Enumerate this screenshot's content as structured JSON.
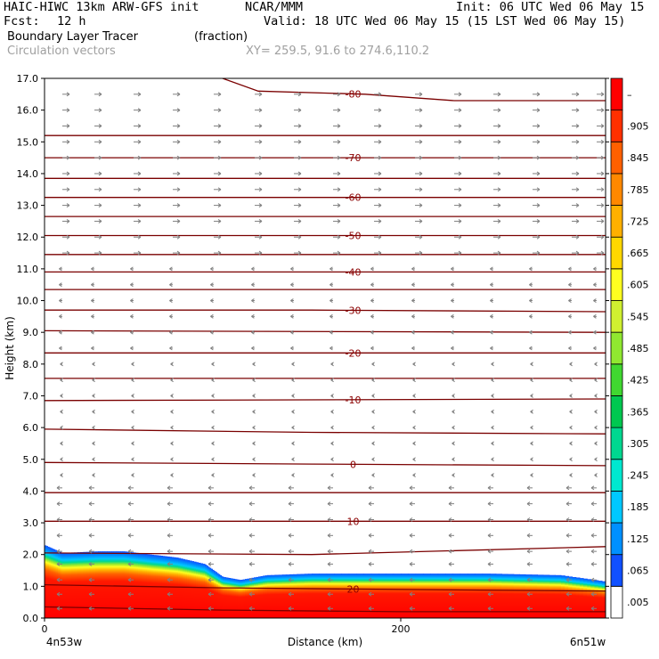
{
  "header": {
    "model": "HAIC-HIWC 13km ARW-GFS init",
    "org": "NCAR/MMM",
    "init": "Init: 06 UTC Wed 06 May 15",
    "fcst_label": "Fcst:",
    "fcst_value": "12 h",
    "valid": "Valid: 18 UTC Wed 06 May 15 (15 LST Wed 06 May 15)",
    "field": "Boundary Layer Tracer",
    "units": "(fraction)",
    "overlay": "Circulation vectors",
    "xy": "XY= 259.5, 91.6 to 274.6,110.2"
  },
  "chart_data": {
    "type": "heatmap",
    "title": "Boundary Layer Tracer",
    "units": "(fraction)",
    "xlabel": "Distance (km)",
    "ylabel": "Height (km)",
    "x_ticks": [
      "0",
      "200"
    ],
    "x_end_labels": {
      "left": "4n53w",
      "right": "6n51w"
    },
    "xlim": [
      0,
      315
    ],
    "ylim": [
      0,
      17
    ],
    "y_ticks": [
      "0.0",
      "1.0",
      "2.0",
      "3.0",
      "4.0",
      "5.0",
      "6.0",
      "7.0",
      "8.0",
      "9.0",
      "10.0",
      "11.0",
      "12.0",
      "13.0",
      "14.0",
      "15.0",
      "16.0",
      "17.0"
    ],
    "colorbar": {
      "labels": [
        ".005",
        ".065",
        ".125",
        ".185",
        ".245",
        ".305",
        ".365",
        ".425",
        ".485",
        ".545",
        ".605",
        ".665",
        ".725",
        ".785",
        ".845",
        ".905",
        "–"
      ],
      "colors": [
        "#ffffff",
        "#1050ff",
        "#0090ff",
        "#00c8ff",
        "#00e8d0",
        "#00d890",
        "#00c850",
        "#40d830",
        "#90e830",
        "#d0f030",
        "#ffff20",
        "#ffd800",
        "#ffb000",
        "#ff8800",
        "#ff6000",
        "#ff3000",
        "#ff0000"
      ]
    },
    "tracer_top_km": [
      [
        0,
        2.3
      ],
      [
        10,
        2.05
      ],
      [
        30,
        2.1
      ],
      [
        45,
        2.1
      ],
      [
        60,
        2.0
      ],
      [
        75,
        1.9
      ],
      [
        90,
        1.7
      ],
      [
        100,
        1.3
      ],
      [
        110,
        1.2
      ],
      [
        125,
        1.35
      ],
      [
        150,
        1.4
      ],
      [
        200,
        1.4
      ],
      [
        250,
        1.4
      ],
      [
        290,
        1.35
      ],
      [
        315,
        1.15
      ]
    ],
    "contours": [
      {
        "label": "-80",
        "x": [
          100,
          120,
          180,
          230,
          315
        ],
        "y": [
          17.0,
          16.6,
          16.5,
          16.3,
          16.3
        ]
      },
      {
        "label": "",
        "x": [
          0,
          315
        ],
        "y": [
          15.2,
          15.2
        ]
      },
      {
        "label": "-70",
        "x": [
          0,
          315
        ],
        "y": [
          14.5,
          14.5
        ]
      },
      {
        "label": "",
        "x": [
          0,
          315
        ],
        "y": [
          13.85,
          13.85
        ]
      },
      {
        "label": "-60",
        "x": [
          0,
          315
        ],
        "y": [
          13.25,
          13.25
        ]
      },
      {
        "label": "",
        "x": [
          0,
          315
        ],
        "y": [
          12.65,
          12.65
        ]
      },
      {
        "label": "-50",
        "x": [
          0,
          315
        ],
        "y": [
          12.05,
          12.05
        ]
      },
      {
        "label": "",
        "x": [
          0,
          315
        ],
        "y": [
          11.45,
          11.45
        ]
      },
      {
        "label": "-40",
        "x": [
          0,
          315
        ],
        "y": [
          10.9,
          10.9
        ]
      },
      {
        "label": "",
        "x": [
          0,
          315
        ],
        "y": [
          10.35,
          10.35
        ]
      },
      {
        "label": "-30",
        "x": [
          0,
          150,
          315
        ],
        "y": [
          9.7,
          9.7,
          9.65
        ]
      },
      {
        "label": "",
        "x": [
          0,
          315
        ],
        "y": [
          9.05,
          9.0
        ]
      },
      {
        "label": "-20",
        "x": [
          0,
          315
        ],
        "y": [
          8.35,
          8.35
        ]
      },
      {
        "label": "",
        "x": [
          0,
          315
        ],
        "y": [
          7.55,
          7.55
        ]
      },
      {
        "label": "-10",
        "x": [
          0,
          315
        ],
        "y": [
          6.85,
          6.9
        ]
      },
      {
        "label": "",
        "x": [
          0,
          150,
          315
        ],
        "y": [
          5.95,
          5.85,
          5.8
        ]
      },
      {
        "label": "0",
        "x": [
          0,
          150,
          315
        ],
        "y": [
          4.9,
          4.85,
          4.8
        ]
      },
      {
        "label": "",
        "x": [
          0,
          315
        ],
        "y": [
          3.95,
          3.95
        ]
      },
      {
        "label": "10",
        "x": [
          0,
          315
        ],
        "y": [
          3.05,
          3.05
        ]
      },
      {
        "label": "",
        "x": [
          0,
          150,
          315
        ],
        "y": [
          2.05,
          2.0,
          2.25
        ]
      },
      {
        "label": "20",
        "x": [
          0,
          100,
          200,
          315
        ],
        "y": [
          1.05,
          0.95,
          0.9,
          0.85
        ]
      },
      {
        "label": "",
        "x": [
          0,
          100,
          200,
          315
        ],
        "y": [
          0.35,
          0.25,
          0.2,
          0.2
        ]
      }
    ],
    "vector_rows_km": [
      0.3,
      0.75,
      1.2,
      1.7,
      2.1,
      2.6,
      3.1,
      3.6,
      4.1,
      4.5,
      5.0,
      5.5,
      6.0,
      6.5,
      7.0,
      7.5,
      8.0,
      8.5,
      9.0,
      9.5,
      10.0,
      10.5,
      11.0,
      11.5,
      12.0,
      12.5,
      13.0,
      13.5,
      14.0,
      14.5,
      15.0,
      15.5,
      16.0,
      16.5
    ],
    "vector_cols_km": [
      10,
      28,
      50,
      72,
      95,
      118,
      140,
      162,
      185,
      208,
      230,
      252,
      274,
      296,
      310
    ]
  }
}
